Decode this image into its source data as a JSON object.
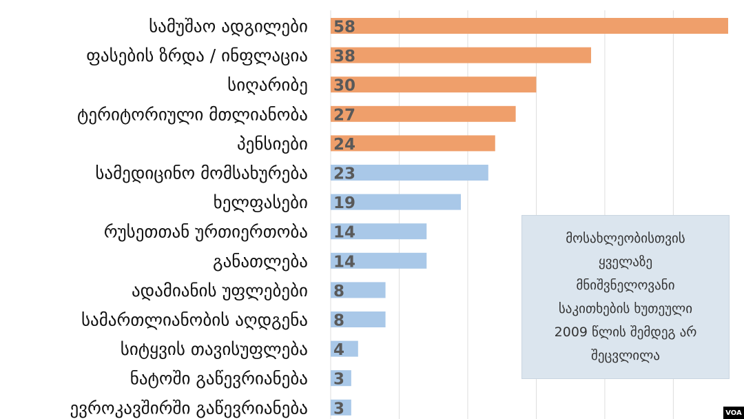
{
  "chart_data": {
    "type": "bar",
    "orientation": "horizontal",
    "categories": [
      "სამუშაო ადგილები",
      "ფასების ზრდა / ინფლაცია",
      "სიღარიბე",
      "ტერიტორიული მთლიანობა",
      "პენსიები",
      "სამედიცინო მომსახურება",
      "ხელფასები",
      "რუსეთთან ურთიერთობა",
      "განათლება",
      "ადამიანის უფლებები",
      "სამართლიანობის აღდგენა",
      "სიტყვის თავისუფლება",
      "ნატოში გაწევრიანება",
      "ევროკავშირში გაწევრიანება"
    ],
    "values": [
      58,
      38,
      30,
      27,
      24,
      23,
      19,
      14,
      14,
      8,
      8,
      4,
      3,
      3
    ],
    "highlight_top": 5,
    "colors": {
      "highlight": "#ef9f6b",
      "other": "#a9c8e8",
      "grid": "#dddddd"
    },
    "xlim": [
      0,
      60
    ],
    "grid": true,
    "title": "",
    "xlabel": "",
    "ylabel": ""
  },
  "note": {
    "text": "მოსახლეობისთვის\nყველაზე\nმნიშვნელოვანი\nსაკითხების ხუთეული\n2009 წლის შემდეგ არ\nშეცვლილა"
  },
  "logo": "VOA"
}
